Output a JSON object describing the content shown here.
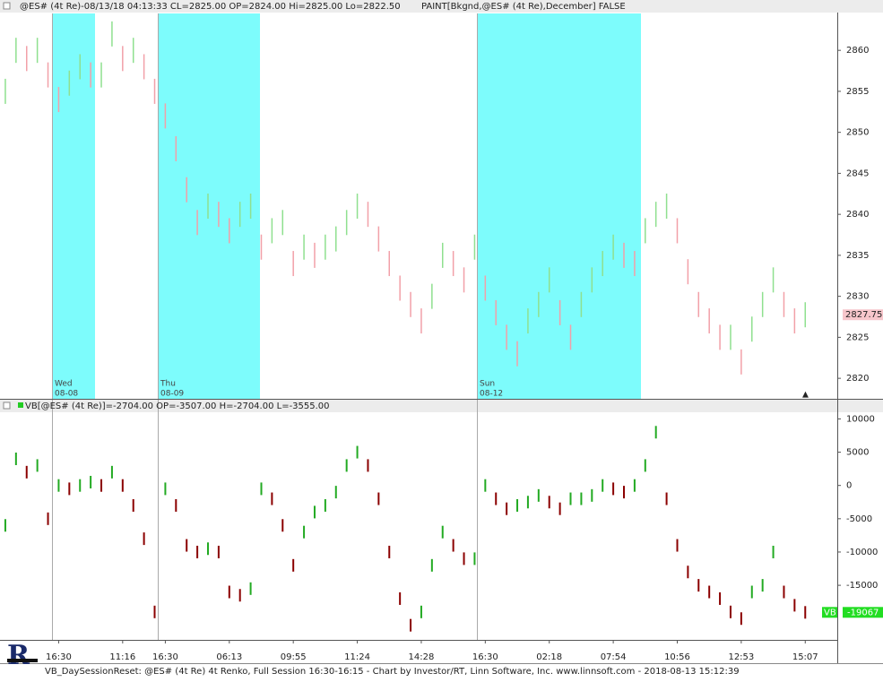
{
  "chart_data": [
    {
      "type": "renko",
      "title": "@ES# (4t Re)-08/13/18 04:13:33 CL=2825.00 OP=2824.00 Hi=2825.00 Lo=2822.50",
      "subtitle": "PAINT[Bkgnd,@ES# (4t Re),December] FALSE",
      "values": [
        2855,
        2860,
        2859,
        2860,
        2857,
        2854,
        2856,
        2858,
        2857,
        2857,
        2862,
        2859,
        2860,
        2858,
        2855,
        2852,
        2848,
        2843,
        2839,
        2841,
        2840,
        2838,
        2840,
        2841,
        2836,
        2838,
        2839,
        2834,
        2836,
        2835,
        2836,
        2837,
        2839,
        2841,
        2840,
        2837,
        2834,
        2831,
        2829,
        2827,
        2830,
        2835,
        2834,
        2832,
        2836,
        2831,
        2828,
        2825,
        2823,
        2827,
        2829,
        2832,
        2828,
        2825,
        2829,
        2832,
        2834,
        2836,
        2835,
        2834,
        2838,
        2840,
        2841,
        2838,
        2833,
        2829,
        2827,
        2825,
        2825,
        2822,
        2826,
        2829,
        2832,
        2829,
        2827,
        2827.75,
        null,
        null
      ],
      "up_color": "#8fe08f",
      "down_color": "#f2a0a8",
      "ylim": [
        2817.5,
        2864.5
      ],
      "yticks": [
        2820,
        2825,
        2830,
        2835,
        2840,
        2845,
        2850,
        2855,
        2860
      ],
      "annotations": [
        {
          "day": "Wed",
          "date": "08-08"
        },
        {
          "day": "Thu",
          "date": "08-09"
        },
        {
          "day": "Sun",
          "date": "08-12"
        }
      ]
    },
    {
      "type": "renko",
      "title": "VB[@ES# (4t Re)]=-2704.00 OP=-3507.00 H=-2704.00 L=-3555.00",
      "name": "VB",
      "categories": [
        null,
        null,
        null,
        null,
        null,
        "16:30",
        null,
        null,
        null,
        null,
        null,
        "11:16",
        null,
        null,
        null,
        "16:30",
        null,
        null,
        null,
        null,
        null,
        "06:13",
        null,
        null,
        null,
        null,
        null,
        "09:55",
        null,
        null,
        null,
        null,
        null,
        "11:24",
        null,
        null,
        null,
        null,
        null,
        "14:28",
        null,
        null,
        null,
        null,
        null,
        "16:30",
        null,
        null,
        null,
        null,
        null,
        "02:18",
        null,
        null,
        null,
        null,
        null,
        "07:54",
        null,
        null,
        null,
        null,
        null,
        "10:56",
        null,
        null,
        null,
        null,
        null,
        "12:53",
        null,
        null,
        null,
        null,
        null,
        "15:07",
        null,
        null
      ],
      "values": [
        -6000,
        4000,
        2000,
        3000,
        -5000,
        0,
        -500,
        0,
        500,
        0,
        2000,
        0,
        -3000,
        -8000,
        -19000,
        -500,
        -3000,
        -9000,
        -10000,
        -9500,
        -10000,
        -16000,
        -16500,
        -15500,
        -500,
        -2000,
        -6000,
        -12000,
        -7000,
        -4000,
        -3000,
        -1000,
        3000,
        5000,
        3000,
        -2000,
        -10000,
        -17000,
        -21000,
        -19000,
        -12000,
        -7000,
        -9000,
        -11000,
        -11000,
        0,
        -2000,
        -3500,
        -3000,
        -2500,
        -1500,
        -2500,
        -3500,
        -2000,
        -2000,
        -1500,
        0,
        -500,
        -1000,
        0,
        3000,
        8000,
        -2000,
        -9000,
        -13000,
        -15000,
        -16000,
        -17000,
        -19000,
        -20000,
        -16000,
        -15000,
        -10000,
        -16000,
        -18000,
        -19067,
        null,
        null
      ],
      "up_color": "#22aa22",
      "down_color": "#8b0000",
      "ylim": [
        -23200,
        11000
      ],
      "yticks": [
        10000,
        5000,
        0,
        -5000,
        -10000,
        -15000
      ]
    }
  ],
  "footer": "VB_DaySessionReset: @ES# (4t Re) 4t Renko, Full Session 16:30-16:15 - Chart by Investor/RT, Linn Software, Inc. www.linnsoft.com - 2018-08-13 15:12:39"
}
